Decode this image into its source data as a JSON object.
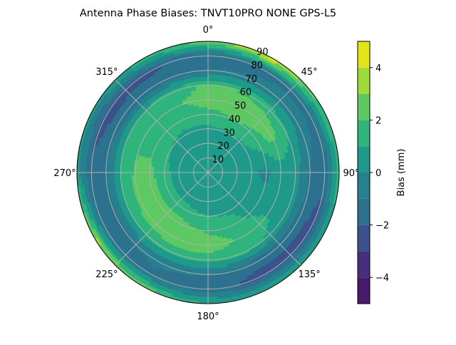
{
  "chart_data": {
    "type": "heatmap",
    "subtype": "polar-filled-contour",
    "title": "Antenna Phase Biases: TNVT10PRO       NONE GPS-L5",
    "theta_direction": "clockwise",
    "theta_zero": "top",
    "theta_ticks": [
      "0°",
      "45°",
      "90°",
      "135°",
      "180°",
      "225°",
      "270°",
      "315°"
    ],
    "r_ticks": [
      "10",
      "20",
      "30",
      "40",
      "50",
      "60",
      "70",
      "80",
      "90"
    ],
    "rlim": [
      0,
      90
    ],
    "grid": true,
    "azimuth": [
      0,
      30,
      60,
      90,
      120,
      150,
      180,
      210,
      240,
      270,
      300,
      330
    ],
    "zenith": [
      0,
      10,
      20,
      30,
      40,
      50,
      60,
      70,
      80,
      90
    ],
    "bias": [
      [
        0.5,
        0.5,
        0.5,
        0.5,
        0.5,
        0.5,
        0.5,
        0.5,
        0.5,
        0.5,
        0.5,
        0.5
      ],
      [
        0.5,
        0.5,
        0.5,
        0.5,
        0.5,
        0.5,
        0.5,
        0.5,
        0.5,
        0.5,
        0.5,
        0.5
      ],
      [
        0.5,
        0.6,
        0.5,
        0.4,
        0.5,
        0.6,
        0.6,
        0.7,
        0.7,
        0.7,
        0.6,
        0.5
      ],
      [
        0.8,
        1.0,
        0.8,
        0.3,
        0.6,
        0.9,
        1.0,
        1.2,
        1.3,
        1.2,
        1.0,
        0.8
      ],
      [
        1.6,
        2.0,
        1.5,
        -0.3,
        0.5,
        1.2,
        1.8,
        2.4,
        2.6,
        2.3,
        1.6,
        1.3
      ],
      [
        2.5,
        3.0,
        2.4,
        0.5,
        0.8,
        1.8,
        2.6,
        2.7,
        2.5,
        2.2,
        1.7,
        1.8
      ],
      [
        2.2,
        1.8,
        1.2,
        0.3,
        0.5,
        1.2,
        1.5,
        1.3,
        1.0,
        1.0,
        1.0,
        1.3
      ],
      [
        -1.0,
        -0.8,
        -0.5,
        -1.0,
        -1.5,
        -1.6,
        -1.0,
        -0.8,
        -1.2,
        -1.2,
        -1.5,
        -1.5
      ],
      [
        -1.5,
        -1.2,
        -1.2,
        -1.8,
        -2.5,
        -2.5,
        -1.6,
        -1.2,
        -1.4,
        -1.8,
        -2.5,
        -2.2
      ],
      [
        2.5,
        4.5,
        2.0,
        1.5,
        1.0,
        1.0,
        1.0,
        2.5,
        3.5,
        0.5,
        0.5,
        1.5
      ]
    ],
    "levels": [
      -5,
      -4,
      -3,
      -2,
      -1,
      0,
      1,
      2,
      3,
      4,
      5
    ],
    "colormap": [
      "#481a6c",
      "#472f7d",
      "#3b528b",
      "#2c728e",
      "#27808e",
      "#1f9a8a",
      "#2fb47c",
      "#5ec962",
      "#a0da39",
      "#e3e418"
    ],
    "colorbar": {
      "label": "Bias (mm)",
      "ticks": [
        "−4",
        "−2",
        "0",
        "2",
        "4"
      ],
      "tick_values": [
        -4,
        -2,
        0,
        2,
        4
      ],
      "range": [
        -5,
        5
      ]
    }
  }
}
